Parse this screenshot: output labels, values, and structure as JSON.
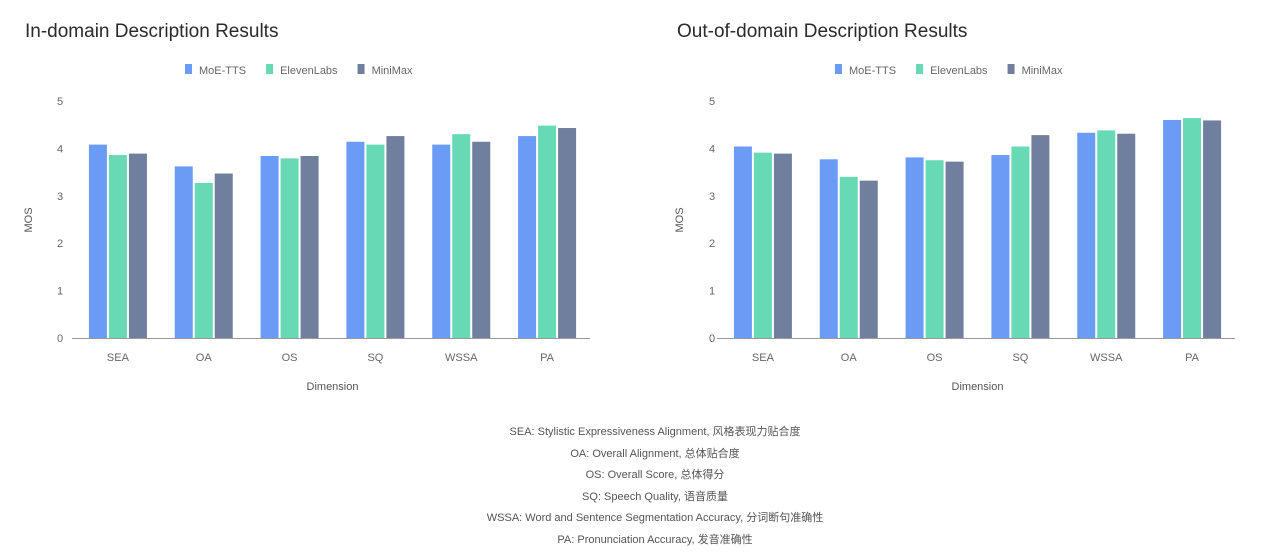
{
  "colors": {
    "MoE-TTS": "#6b9cf5",
    "ElevenLabs": "#67d9b4",
    "MiniMax": "#717f9e"
  },
  "chart_data": [
    {
      "type": "bar",
      "title": "In-domain Description Results",
      "xlabel": "Dimension",
      "ylabel": "MOS",
      "ylim": [
        0,
        5
      ],
      "yticks": [
        "0",
        "1",
        "2",
        "3",
        "4",
        "5"
      ],
      "grid": false,
      "legend": "top-center",
      "categories": [
        "SEA",
        "OA",
        "OS",
        "SQ",
        "WSSA",
        "PA"
      ],
      "series": [
        {
          "name": "MoE-TTS",
          "values": [
            4.08,
            3.62,
            3.84,
            4.14,
            4.08,
            4.26
          ]
        },
        {
          "name": "ElevenLabs",
          "values": [
            3.86,
            3.27,
            3.79,
            4.08,
            4.3,
            4.48
          ]
        },
        {
          "name": "MiniMax",
          "values": [
            3.89,
            3.47,
            3.84,
            4.26,
            4.14,
            4.43
          ]
        }
      ]
    },
    {
      "type": "bar",
      "title": "Out-of-domain Description Results",
      "xlabel": "Dimension",
      "ylabel": "MOS",
      "ylim": [
        0,
        5
      ],
      "yticks": [
        "0",
        "1",
        "2",
        "3",
        "4",
        "5"
      ],
      "grid": false,
      "legend": "top-center",
      "categories": [
        "SEA",
        "OA",
        "OS",
        "SQ",
        "WSSA",
        "PA"
      ],
      "series": [
        {
          "name": "MoE-TTS",
          "values": [
            4.04,
            3.77,
            3.81,
            3.86,
            4.33,
            4.6
          ]
        },
        {
          "name": "ElevenLabs",
          "values": [
            3.91,
            3.4,
            3.75,
            4.04,
            4.38,
            4.64
          ]
        },
        {
          "name": "MiniMax",
          "values": [
            3.89,
            3.32,
            3.72,
            4.28,
            4.31,
            4.59
          ]
        }
      ]
    }
  ],
  "notes": [
    "SEA: Stylistic Expressiveness Alignment, 风格表现力贴合度",
    "OA: Overall Alignment, 总体贴合度",
    "OS: Overall Score, 总体得分",
    "SQ: Speech Quality, 语音质量",
    "WSSA: Word and Sentence Segmentation Accuracy, 分词断句准确性",
    "PA: Pronunciation Accuracy, 发音准确性"
  ]
}
